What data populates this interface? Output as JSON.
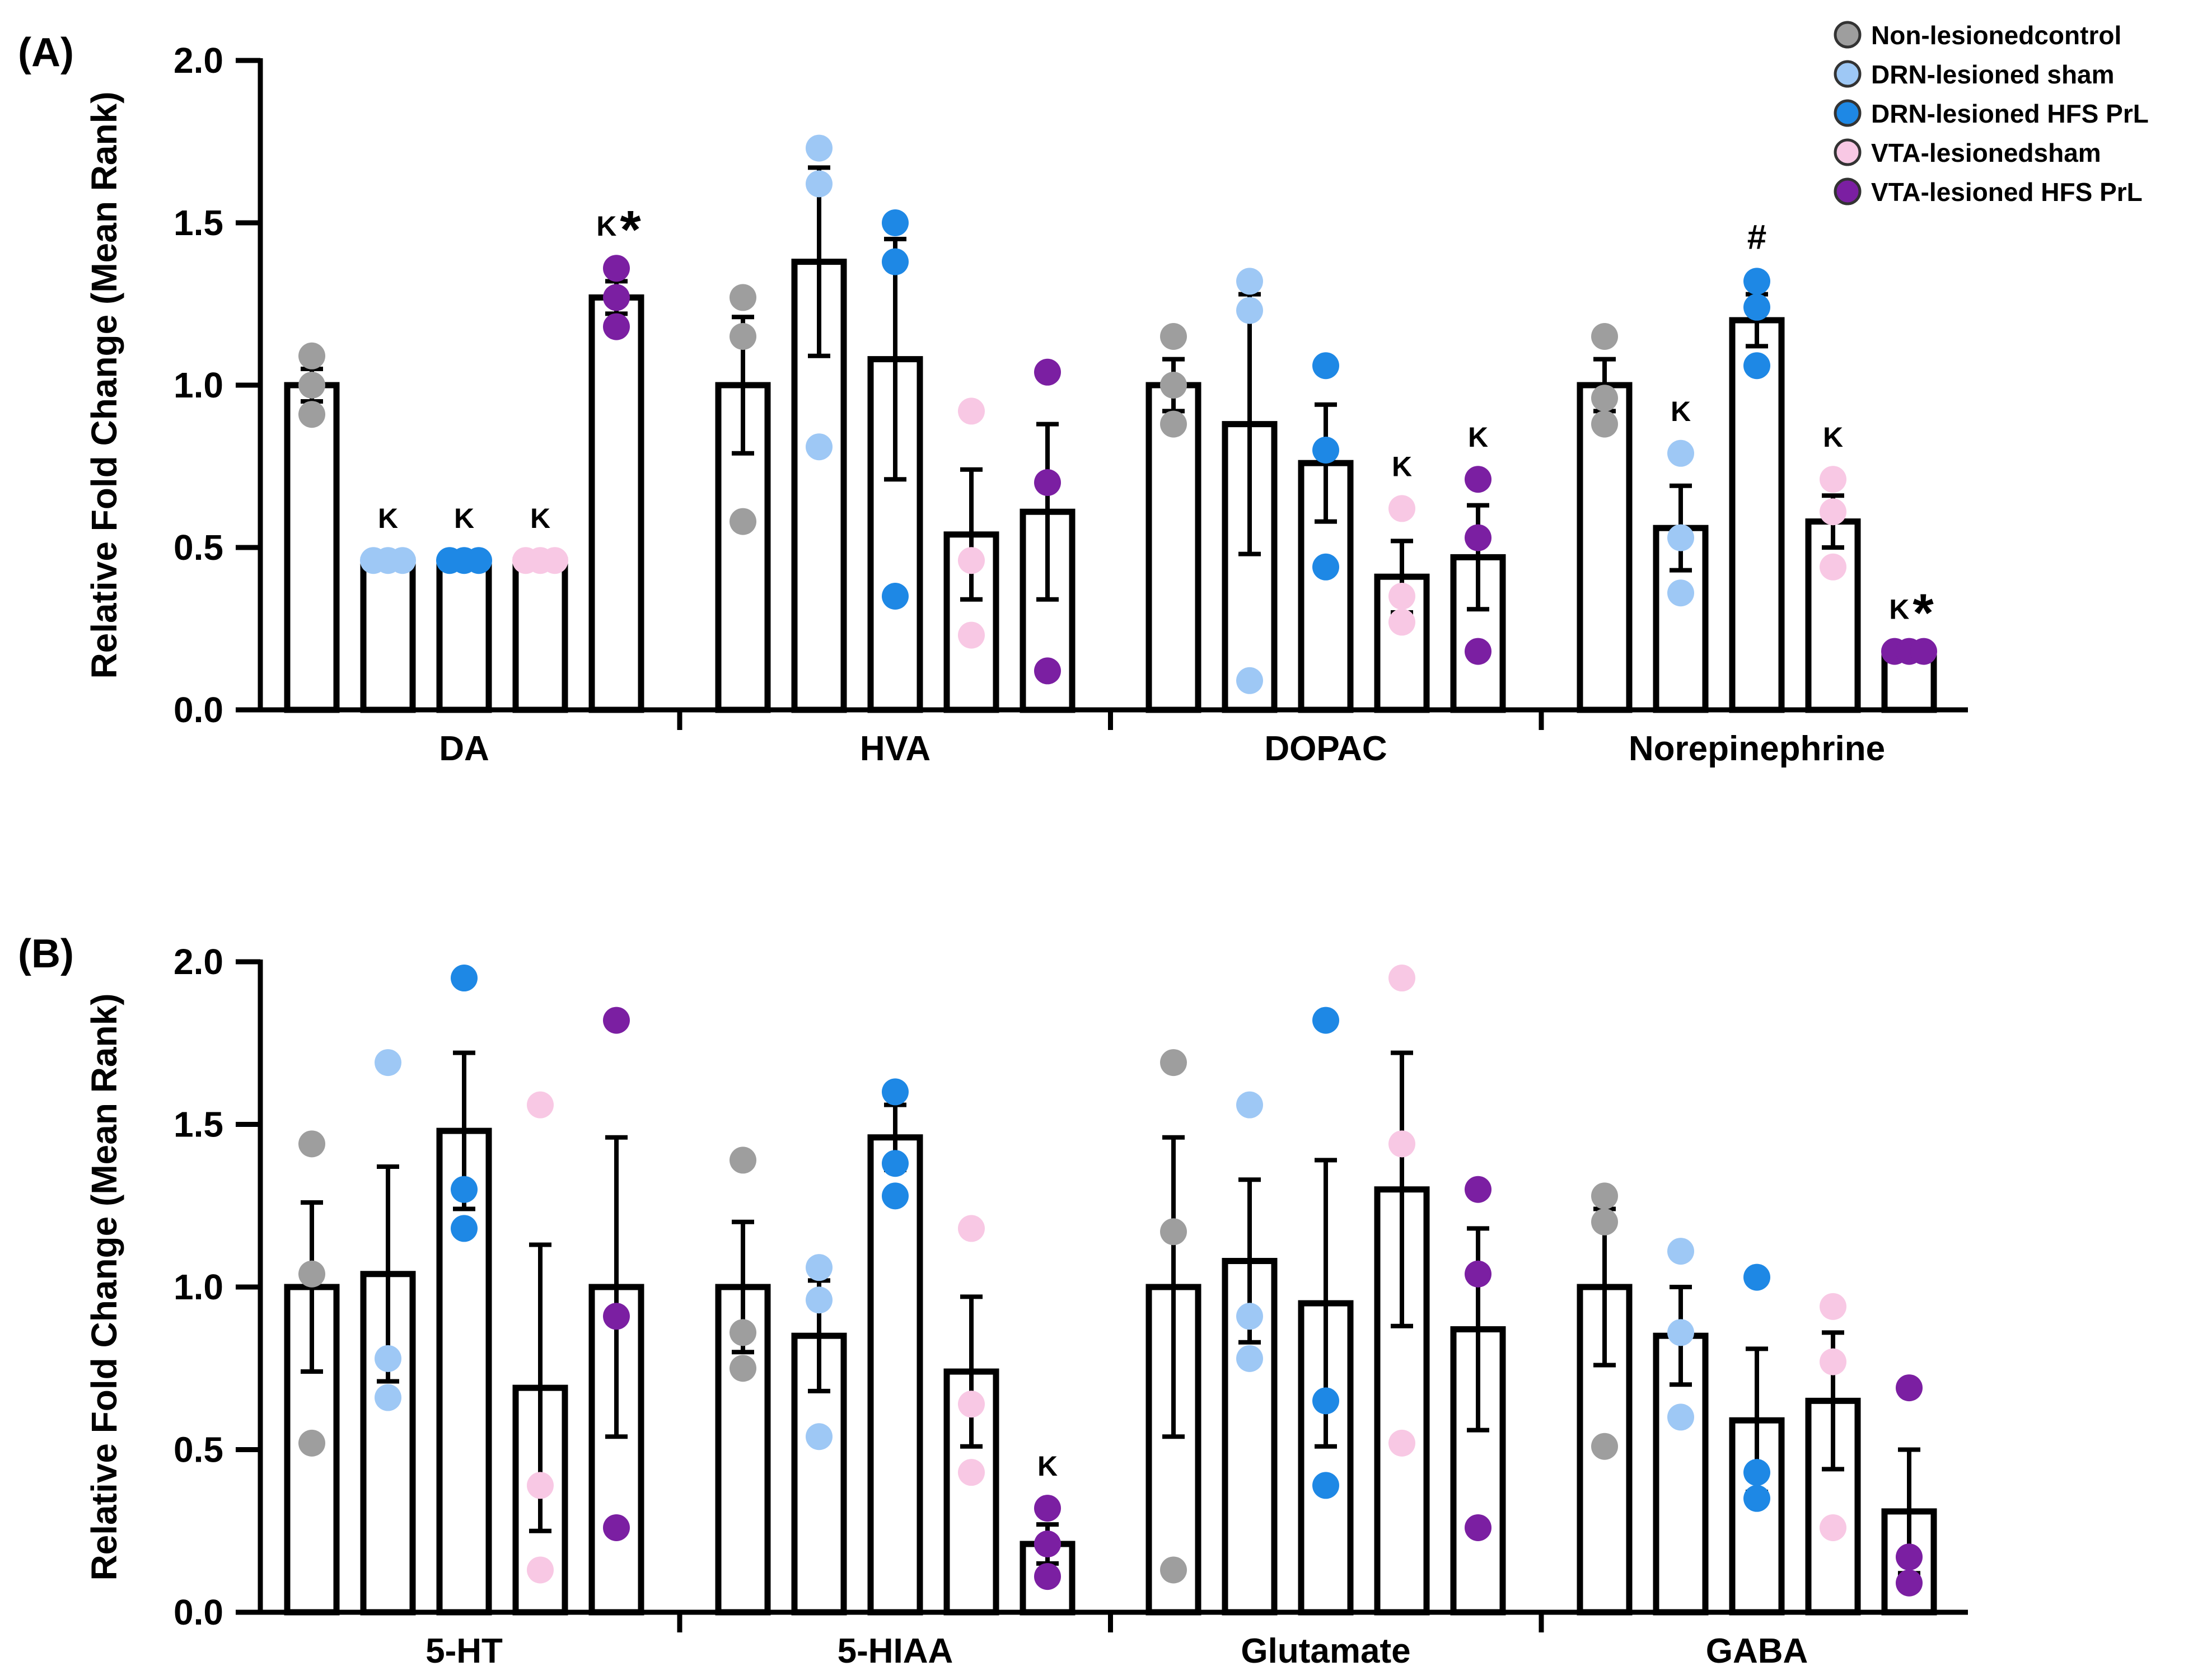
{
  "legend": [
    {
      "label": "Non-lesionedcontrol",
      "color": "#9e9e9e"
    },
    {
      "label": "DRN-lesioned sham",
      "color": "#9ec8f5"
    },
    {
      "label": "DRN-lesioned HFS PrL",
      "color": "#1e88e5"
    },
    {
      "label": "VTA-lesionedsham",
      "color": "#f8c8e4"
    },
    {
      "label": "VTA-lesioned HFS PrL",
      "color": "#7b1fa2"
    }
  ],
  "chart_data": [
    {
      "type": "bar",
      "panel": "(A)",
      "ylabel": "Relative Fold Change (Mean Rank)",
      "ylim": [
        0,
        2.0
      ],
      "yticks": [
        "0.0",
        "0.5",
        "1.0",
        "1.5",
        "2.0"
      ],
      "categories": [
        "DA",
        "HVA",
        "DOPAC",
        "Norepinephrine"
      ],
      "series": [
        {
          "name": "Non-lesionedcontrol",
          "values": [
            1.0,
            1.0,
            1.0,
            1.0
          ],
          "errors": [
            0.05,
            0.21,
            0.08,
            0.08
          ],
          "points": [
            [
              1.09,
              1.0,
              0.91
            ],
            [
              1.27,
              1.15,
              0.58
            ],
            [
              1.15,
              1.0,
              0.88
            ],
            [
              1.15,
              0.96,
              0.88
            ]
          ],
          "annotations": [
            "",
            "",
            "",
            ""
          ]
        },
        {
          "name": "DRN-lesioned sham",
          "values": [
            0.46,
            1.38,
            0.88,
            0.56
          ],
          "errors": [
            0,
            0.29,
            0.4,
            0.13
          ],
          "points": [
            [
              0.46,
              0.46,
              0.46
            ],
            [
              1.73,
              1.62,
              0.81
            ],
            [
              1.32,
              1.23,
              0.09
            ],
            [
              0.79,
              0.53,
              0.36
            ]
          ],
          "annotations": [
            "K",
            "",
            "",
            "K"
          ]
        },
        {
          "name": "DRN-lesioned HFS PrL",
          "values": [
            0.46,
            1.08,
            0.76,
            1.2
          ],
          "errors": [
            0,
            0.37,
            0.18,
            0.08
          ],
          "points": [
            [
              0.46,
              0.46,
              0.46
            ],
            [
              1.5,
              1.38,
              0.35
            ],
            [
              1.06,
              0.8,
              0.44
            ],
            [
              1.32,
              1.24,
              1.06
            ]
          ],
          "annotations": [
            "K",
            "",
            "",
            "#"
          ]
        },
        {
          "name": "VTA-lesionedsham",
          "values": [
            0.46,
            0.54,
            0.41,
            0.58
          ],
          "errors": [
            0,
            0.2,
            0.11,
            0.08
          ],
          "points": [
            [
              0.46,
              0.46,
              0.46
            ],
            [
              0.92,
              0.46,
              0.23
            ],
            [
              0.62,
              0.35,
              0.27
            ],
            [
              0.71,
              0.61,
              0.44
            ]
          ],
          "annotations": [
            "K",
            "",
            "K",
            "K"
          ]
        },
        {
          "name": "VTA-lesioned HFS PrL",
          "values": [
            1.27,
            0.61,
            0.47,
            0.18
          ],
          "errors": [
            0.05,
            0.27,
            0.16,
            0
          ],
          "points": [
            [
              1.36,
              1.27,
              1.18
            ],
            [
              1.04,
              0.7,
              0.12
            ],
            [
              0.71,
              0.53,
              0.18
            ],
            [
              0.18,
              0.18,
              0.18
            ]
          ],
          "annotations": [
            "K*",
            "",
            "K",
            "K*"
          ]
        }
      ]
    },
    {
      "type": "bar",
      "panel": "(B)",
      "ylabel": "Relative Fold Change (Mean Rank)",
      "ylim": [
        0,
        2.0
      ],
      "yticks": [
        "0.0",
        "0.5",
        "1.0",
        "1.5",
        "2.0"
      ],
      "categories": [
        "5-HT",
        "5-HIAA",
        "Glutamate",
        "GABA"
      ],
      "series": [
        {
          "name": "Non-lesionedcontrol",
          "values": [
            1.0,
            1.0,
            1.0,
            1.0
          ],
          "errors": [
            0.26,
            0.2,
            0.46,
            0.24
          ],
          "points": [
            [
              1.44,
              1.04,
              0.52
            ],
            [
              1.39,
              0.86,
              0.75
            ],
            [
              1.69,
              1.17,
              0.13
            ],
            [
              1.28,
              1.2,
              0.51
            ]
          ],
          "annotations": [
            "",
            "",
            "",
            ""
          ]
        },
        {
          "name": "DRN-lesioned sham",
          "values": [
            1.04,
            0.85,
            1.08,
            0.85
          ],
          "errors": [
            0.33,
            0.17,
            0.25,
            0.15
          ],
          "points": [
            [
              1.69,
              0.78,
              0.66
            ],
            [
              1.06,
              0.96,
              0.54
            ],
            [
              1.56,
              0.91,
              0.78
            ],
            [
              1.11,
              0.86,
              0.6
            ]
          ],
          "annotations": [
            "",
            "",
            "",
            ""
          ]
        },
        {
          "name": "DRN-lesioned HFS PrL",
          "values": [
            1.48,
            1.46,
            0.95,
            0.59
          ],
          "errors": [
            0.24,
            0.1,
            0.44,
            0.22
          ],
          "points": [
            [
              1.95,
              1.3,
              1.18
            ],
            [
              1.6,
              1.38,
              1.28
            ],
            [
              1.82,
              0.65,
              0.39
            ],
            [
              1.03,
              0.43,
              0.35
            ]
          ],
          "annotations": [
            "",
            "",
            "",
            ""
          ]
        },
        {
          "name": "VTA-lesionedsham",
          "values": [
            0.69,
            0.74,
            1.3,
            0.65
          ],
          "errors": [
            0.44,
            0.23,
            0.42,
            0.21
          ],
          "points": [
            [
              1.56,
              0.39,
              0.13
            ],
            [
              1.18,
              0.64,
              0.43
            ],
            [
              1.95,
              1.44,
              0.52
            ],
            [
              0.94,
              0.77,
              0.26
            ]
          ],
          "annotations": [
            "",
            "",
            "",
            ""
          ]
        },
        {
          "name": "VTA-lesioned HFS PrL",
          "values": [
            1.0,
            0.21,
            0.87,
            0.31
          ],
          "errors": [
            0.46,
            0.06,
            0.31,
            0.19
          ],
          "points": [
            [
              1.82,
              0.91,
              0.26
            ],
            [
              0.32,
              0.21,
              0.11
            ],
            [
              1.3,
              1.04,
              0.26
            ],
            [
              0.69,
              0.17,
              0.09
            ]
          ],
          "annotations": [
            "",
            "K",
            "",
            ""
          ]
        }
      ]
    }
  ]
}
